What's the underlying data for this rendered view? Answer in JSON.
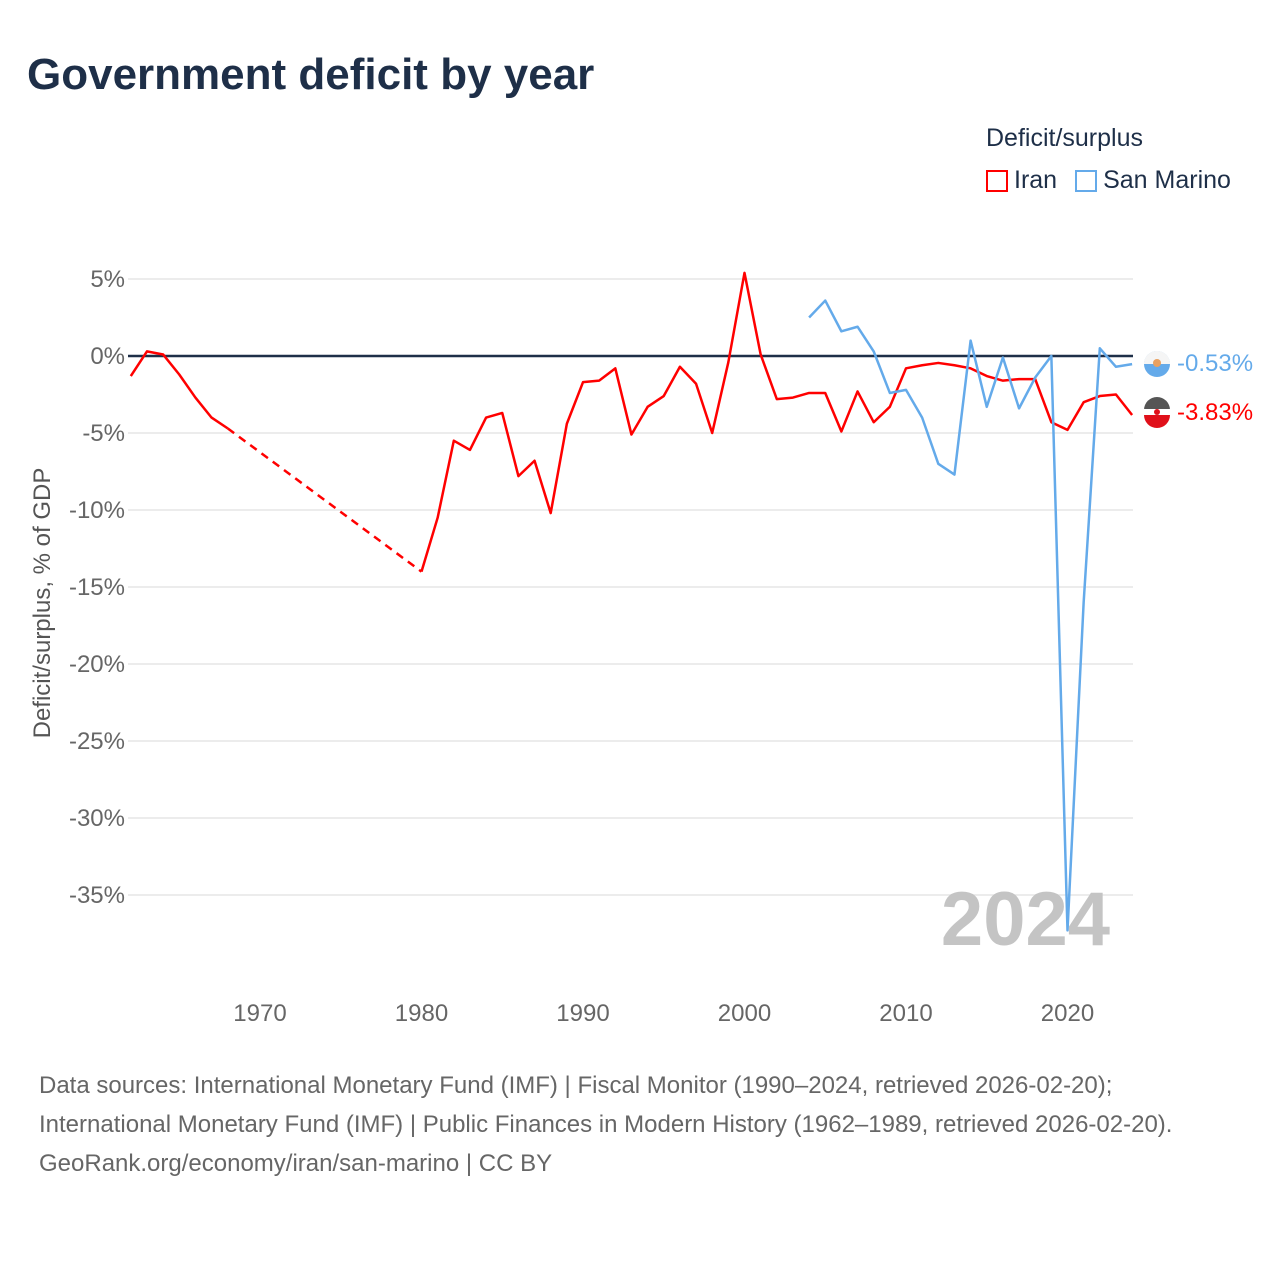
{
  "title": "Government deficit by year",
  "legend": {
    "title": "Deficit/surplus",
    "items": [
      {
        "name": "Iran",
        "color": "#ff0000"
      },
      {
        "name": "San Marino",
        "color": "#64aaea"
      }
    ]
  },
  "watermark_year": "2024",
  "end_labels": {
    "iran": "-3.83%",
    "san_marino": "-0.53%"
  },
  "footer": {
    "sources": "Data sources: International Monetary Fund (IMF) | Fiscal Monitor (1990–2024, retrieved 2026-02-20); International Monetary Fund (IMF) | Public Finances in Modern History (1962–1989, retrieved 2026-02-20).",
    "credit": "GeoRank.org/economy/iran/san-marino | CC BY"
  },
  "chart_data": {
    "type": "line",
    "title": "Government deficit by year",
    "ylabel": "Deficit/surplus, % of GDP",
    "xlabel": "",
    "xlim": [
      1962,
      2024
    ],
    "ylim": [
      -38.5,
      6
    ],
    "xticks": [
      1970,
      1980,
      1990,
      2000,
      2010,
      2020
    ],
    "yticks": [
      5,
      0,
      -5,
      -10,
      -15,
      -20,
      -25,
      -30,
      -35
    ],
    "ytick_labels": [
      "5%",
      "0%",
      "-5%",
      "-10%",
      "-15%",
      "-20%",
      "-25%",
      "-30%",
      "-35%"
    ],
    "grid": true,
    "legend_position": "top-right",
    "series": [
      {
        "name": "Iran",
        "color": "#ff0000",
        "dashed_gap": [
          1968,
          1980
        ],
        "x": [
          1962,
          1963,
          1964,
          1965,
          1966,
          1967,
          1968,
          1980,
          1981,
          1982,
          1983,
          1984,
          1985,
          1986,
          1987,
          1988,
          1989,
          1990,
          1991,
          1992,
          1993,
          1994,
          1995,
          1996,
          1997,
          1998,
          1999,
          2000,
          2001,
          2002,
          2003,
          2004,
          2005,
          2006,
          2007,
          2008,
          2009,
          2010,
          2011,
          2012,
          2013,
          2014,
          2015,
          2016,
          2017,
          2018,
          2019,
          2020,
          2021,
          2022,
          2023,
          2024
        ],
        "y": [
          -1.3,
          0.3,
          0.1,
          -1.2,
          -2.7,
          -4.0,
          -4.7,
          -14.0,
          -10.5,
          -5.5,
          -6.1,
          -4.0,
          -3.7,
          -7.8,
          -6.8,
          -10.2,
          -4.4,
          -1.7,
          -1.6,
          -0.8,
          -5.1,
          -3.3,
          -2.6,
          -0.7,
          -1.8,
          -5.0,
          -0.4,
          5.4,
          0.1,
          -2.8,
          -2.7,
          -2.4,
          -2.4,
          -4.9,
          -2.3,
          -4.3,
          -3.3,
          -0.8,
          -0.6,
          -0.45,
          -0.6,
          -0.8,
          -1.3,
          -1.6,
          -1.5,
          -1.5,
          -4.3,
          -4.8,
          -3.0,
          -2.6,
          -2.5,
          -3.83
        ]
      },
      {
        "name": "San Marino",
        "color": "#64aaea",
        "x": [
          2004,
          2005,
          2006,
          2007,
          2008,
          2009,
          2010,
          2011,
          2012,
          2013,
          2014,
          2015,
          2016,
          2017,
          2018,
          2019,
          2020,
          2021,
          2022,
          2023,
          2024
        ],
        "y": [
          2.5,
          3.6,
          1.6,
          1.9,
          0.3,
          -2.4,
          -2.2,
          -4.0,
          -7.0,
          -7.7,
          1.0,
          -3.3,
          -0.1,
          -3.4,
          -1.4,
          0.0,
          -37.3,
          -16.0,
          0.5,
          -0.7,
          -0.53
        ]
      }
    ]
  }
}
